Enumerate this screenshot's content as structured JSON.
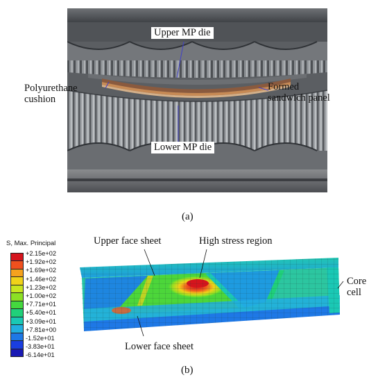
{
  "panel_a": {
    "labels": {
      "upper_die": "Upper MP die",
      "polyurethane": [
        "Polyurethane",
        "cushion"
      ],
      "formed_panel": [
        "Formed",
        "sandwich panel"
      ],
      "lower_die": "Lower MP die"
    },
    "caption": "(a)"
  },
  "panel_b": {
    "legend": {
      "title": "S, Max. Principal",
      "values": [
        "+2.15e+02",
        "+1.92e+02",
        "+1.69e+02",
        "+1.46e+02",
        "+1.23e+02",
        "+1.00e+02",
        "+7.71e+01",
        "+5.40e+01",
        "+3.09e+01",
        "+7.81e+00",
        "-1.52e+01",
        "-3.83e+01",
        "-6.14e+01"
      ],
      "colors": [
        "#d5141d",
        "#f0501e",
        "#f5a21e",
        "#f0d21a",
        "#c8e620",
        "#8ce024",
        "#44d83e",
        "#20d07a",
        "#1ac8b4",
        "#22aee0",
        "#1e78e6",
        "#1a3ee0",
        "#1a1ab4"
      ]
    },
    "labels": {
      "upper_face": "Upper face sheet",
      "high_stress": "High stress region",
      "core_cell": [
        "Core",
        "cell"
      ],
      "lower_face": "Lower face sheet"
    },
    "caption": "(b)"
  }
}
